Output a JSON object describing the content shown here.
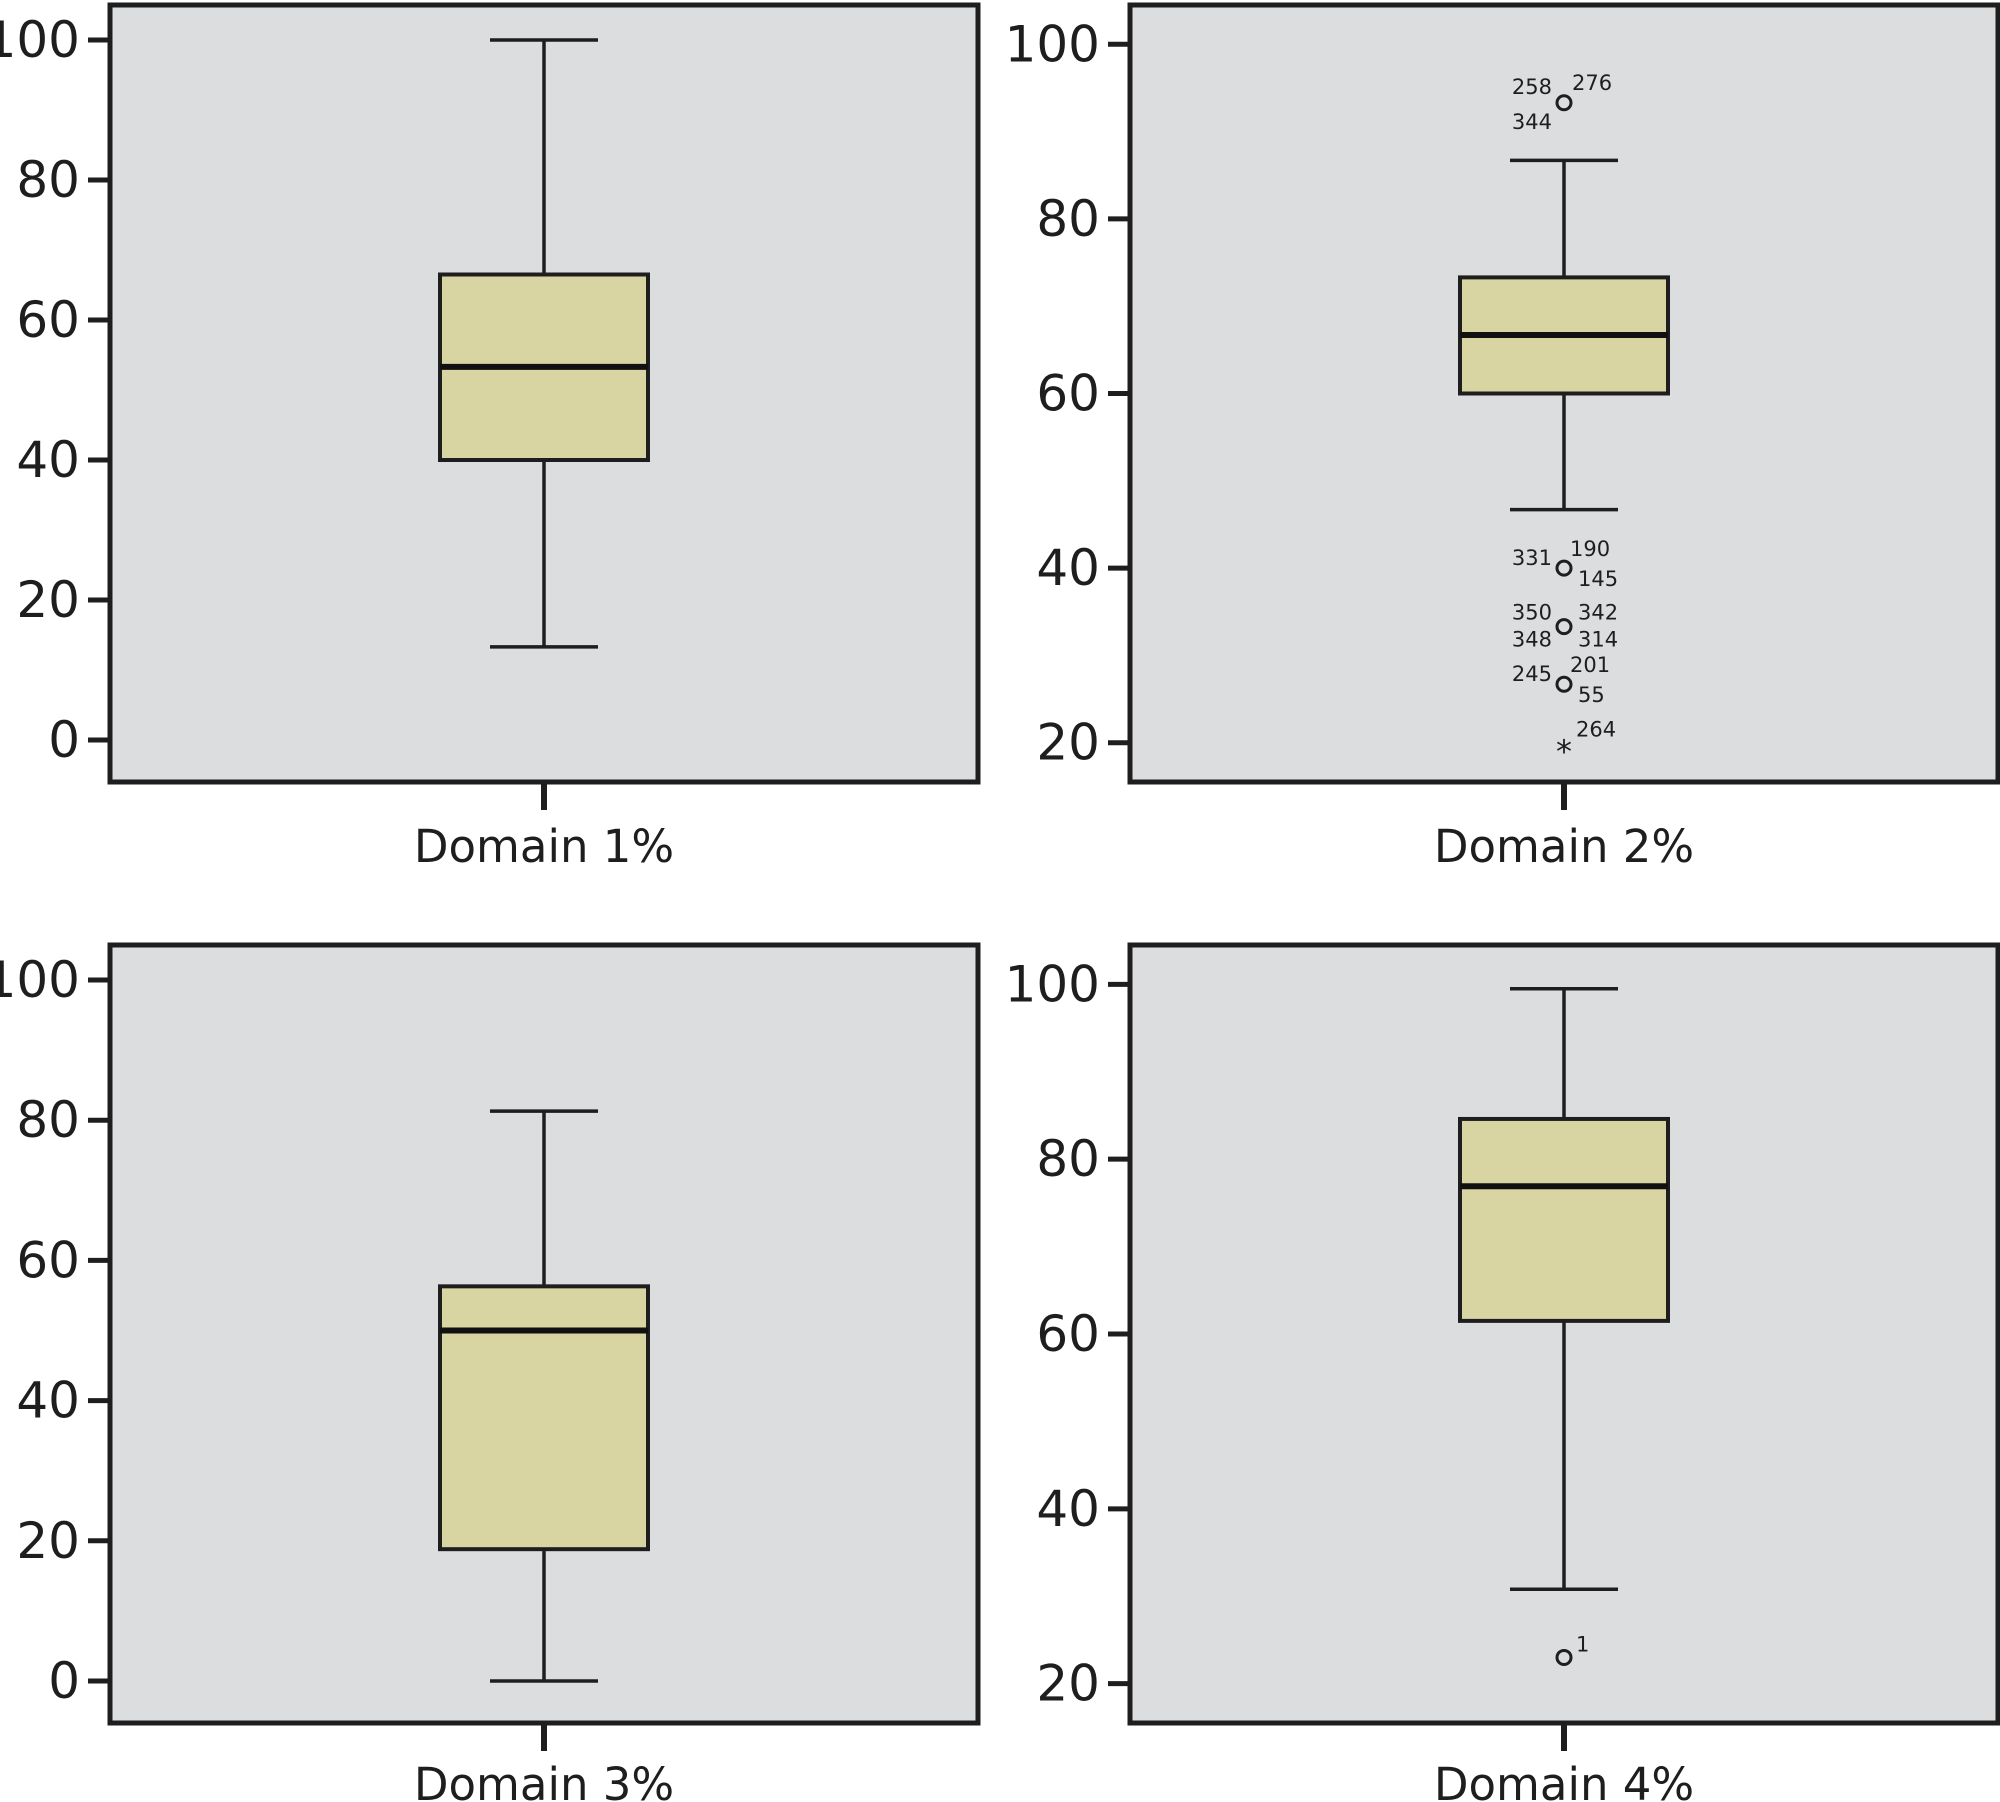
{
  "colors": {
    "plot_background": "#dcdddf",
    "box_fill": "#d8d5a3",
    "stroke": "#1e1e1e",
    "page_background": "#ffffff"
  },
  "chart_data": [
    {
      "type": "box",
      "xlabel": "Domain 1%",
      "ylim": [
        -6,
        105
      ],
      "yticks": [
        0,
        20,
        40,
        60,
        80,
        100
      ],
      "tick_labels": [
        "0",
        "20",
        "40",
        "60",
        "80",
        "100"
      ],
      "whisker_low": 13.3,
      "q1": 40,
      "median": 53.3,
      "q3": 66.5,
      "whisker_high": 100,
      "outliers": []
    },
    {
      "type": "box",
      "xlabel": "Domain 2%",
      "ylim": [
        15.5,
        104.5
      ],
      "yticks": [
        20,
        40,
        60,
        80,
        100
      ],
      "tick_labels": [
        "20",
        "40",
        "60",
        "80",
        "100"
      ],
      "whisker_low": 46.7,
      "q1": 60,
      "median": 66.7,
      "q3": 73.3,
      "whisker_high": 86.7,
      "outliers": [
        {
          "value": 93.3,
          "marker": "circle",
          "labels": [
            "258",
            "276",
            "344"
          ]
        },
        {
          "value": 40,
          "marker": "circle",
          "labels": [
            "331",
            "190",
            "145"
          ]
        },
        {
          "value": 33.3,
          "marker": "circle",
          "labels": [
            "350",
            "342",
            "348",
            "314"
          ]
        },
        {
          "value": 26.7,
          "marker": "circle",
          "labels": [
            "245",
            "201",
            "55"
          ]
        },
        {
          "value": 20,
          "marker": "star",
          "labels": [
            "264"
          ]
        }
      ]
    },
    {
      "type": "box",
      "xlabel": "Domain 3%",
      "ylim": [
        -6,
        105
      ],
      "yticks": [
        0,
        20,
        40,
        60,
        80,
        100
      ],
      "tick_labels": [
        "0",
        "20",
        "40",
        "60",
        "80",
        "100"
      ],
      "whisker_low": 0,
      "q1": 18.8,
      "median": 50,
      "q3": 56.3,
      "whisker_high": 81.3,
      "outliers": []
    },
    {
      "type": "box",
      "xlabel": "Domain 4%",
      "ylim": [
        15.5,
        104.5
      ],
      "yticks": [
        20,
        40,
        60,
        80,
        100
      ],
      "tick_labels": [
        "20",
        "40",
        "60",
        "80",
        "100"
      ],
      "whisker_low": 30.8,
      "q1": 61.5,
      "median": 76.9,
      "q3": 84.6,
      "whisker_high": 99.5,
      "outliers": [
        {
          "value": 23,
          "marker": "circle",
          "labels": [
            "1"
          ]
        }
      ]
    }
  ]
}
